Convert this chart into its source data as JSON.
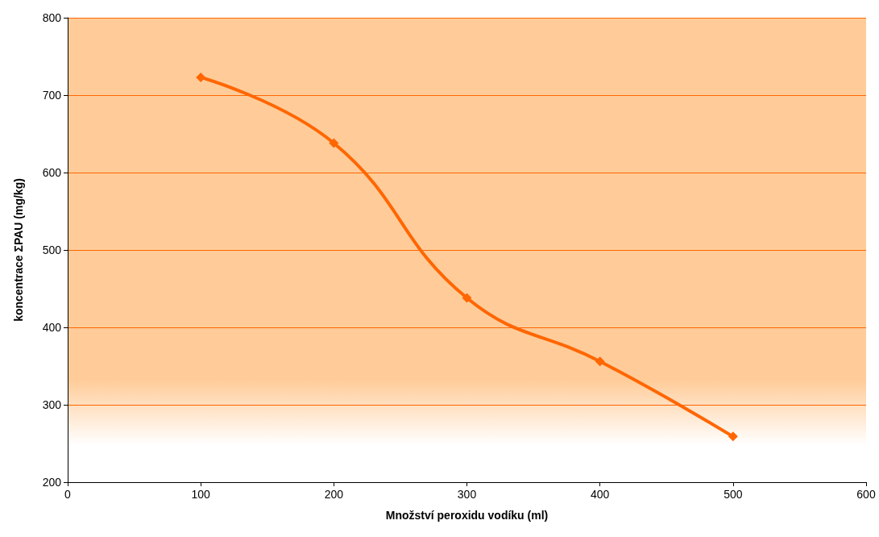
{
  "chart_data": {
    "type": "line",
    "xlabel": "Množství peroxidu vodíku (ml)",
    "ylabel": "koncentrace ΣPAU (mg/kg)",
    "x": [
      100,
      200,
      300,
      400,
      500
    ],
    "series": [
      {
        "color": "#ff6600",
        "values": [
          723,
          638,
          438,
          356,
          259
        ]
      }
    ],
    "xlim": [
      0,
      600
    ],
    "xticks": [
      0,
      100,
      200,
      300,
      400,
      500,
      600
    ],
    "ylim": [
      200,
      800
    ],
    "yticks": [
      200,
      300,
      400,
      500,
      600,
      700,
      800
    ],
    "grid": "y",
    "marker": "diamond",
    "line_style": "solid"
  }
}
